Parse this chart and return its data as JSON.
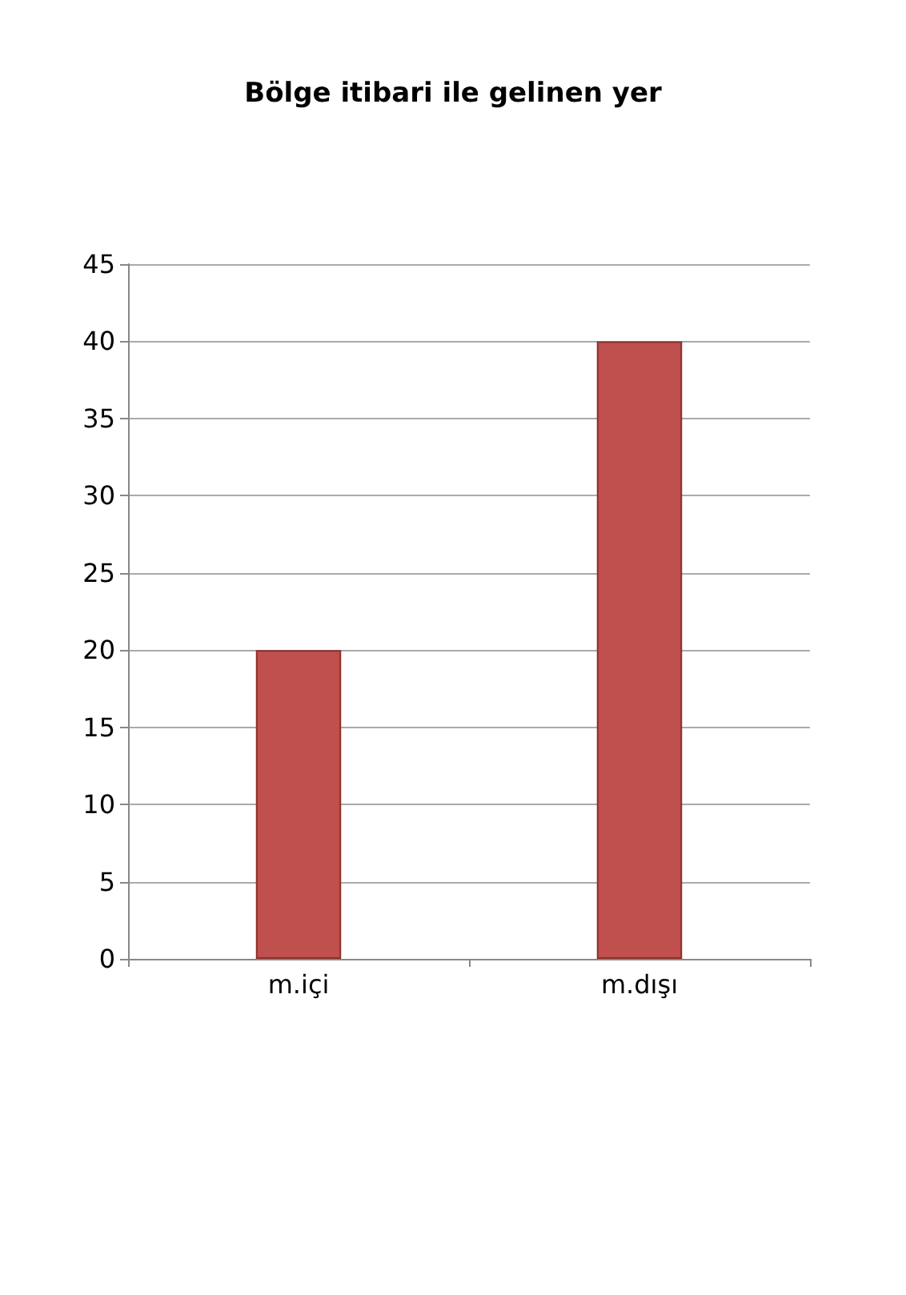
{
  "chart_data": {
    "type": "bar",
    "title": "Bölge itibari ile gelinen yer",
    "categories": [
      "m.içi",
      "m.dışı"
    ],
    "values": [
      20,
      40
    ],
    "color": "#c0504d",
    "ylim": [
      0,
      45
    ],
    "yticks": [
      0,
      5,
      10,
      15,
      20,
      25,
      30,
      35,
      40,
      45
    ],
    "grid": true
  }
}
